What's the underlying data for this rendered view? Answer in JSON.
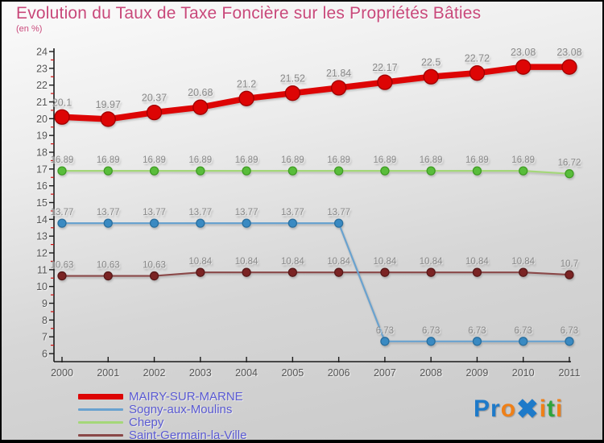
{
  "header": {
    "title": "Evolution du Taux de Taxe Foncière sur les Propriétés Bâties",
    "subtitle": "(en %)"
  },
  "colors": {
    "title": "#c8487a",
    "legend_text": "#5a5ad2",
    "axis": "#1b1b1b",
    "tick_label": "#555555",
    "value_label": "#8a8a8a",
    "minor_tick": "#cc1111",
    "border": "#000000"
  },
  "chart_data": {
    "type": "line",
    "title": "Evolution du Taux de Taxe Foncière sur les Propriétés Bâties",
    "subtitle_unit": "(en %)",
    "x": [
      "2000",
      "2001",
      "2002",
      "2003",
      "2004",
      "2005",
      "2006",
      "2007",
      "2008",
      "2009",
      "2010",
      "2011"
    ],
    "xlabel": "",
    "ylabel": "",
    "ylim": [
      6,
      24
    ],
    "ytick_step": 1,
    "minor_tick_step": 0.5,
    "grid": false,
    "legend_position": "bottom-left",
    "series": [
      {
        "name": "MAIRY-SUR-MARNE",
        "line_color": "#dd0505",
        "marker_fill": "#dd0505",
        "marker_stroke": "#a00000",
        "line_width": 7.5,
        "marker_radius": 9,
        "values": [
          20.1,
          19.97,
          20.37,
          20.68,
          21.2,
          21.52,
          21.84,
          22.17,
          22.5,
          22.72,
          23.08,
          23.08
        ]
      },
      {
        "name": "Sogny-aux-Moulins",
        "line_color": "#69a2cf",
        "marker_fill": "#3a8ac2",
        "marker_stroke": "#2a6f9e",
        "line_width": 2.2,
        "marker_radius": 5,
        "values": [
          13.77,
          13.77,
          13.77,
          13.77,
          13.77,
          13.77,
          13.77,
          6.73,
          6.73,
          6.73,
          6.73,
          6.73
        ]
      },
      {
        "name": "Chepy",
        "line_color": "#a4d779",
        "marker_fill": "#59bd3b",
        "marker_stroke": "#3f9c24",
        "line_width": 2.2,
        "marker_radius": 5,
        "values": [
          16.89,
          16.89,
          16.89,
          16.89,
          16.89,
          16.89,
          16.89,
          16.89,
          16.89,
          16.89,
          16.89,
          16.72
        ]
      },
      {
        "name": "Saint-Germain-la-Ville",
        "line_color": "#8a4848",
        "marker_fill": "#7b2424",
        "marker_stroke": "#581a1a",
        "line_width": 2.2,
        "marker_radius": 5,
        "values": [
          10.63,
          10.63,
          10.63,
          10.84,
          10.84,
          10.84,
          10.84,
          10.84,
          10.84,
          10.84,
          10.84,
          10.7
        ]
      }
    ]
  },
  "logo": {
    "name": "Proxiti",
    "letters": [
      {
        "ch": "P",
        "color": "#1e7ac9"
      },
      {
        "ch": "r",
        "color": "#1e7ac9"
      },
      {
        "ch": "o",
        "color": "#ef8018"
      },
      {
        "ch": "✖",
        "color": "#1e7ac9"
      },
      {
        "ch": "i",
        "color": "#ef8018"
      },
      {
        "ch": "t",
        "color": "#2ea43b"
      },
      {
        "ch": "i",
        "color": "#ef8018"
      }
    ]
  }
}
